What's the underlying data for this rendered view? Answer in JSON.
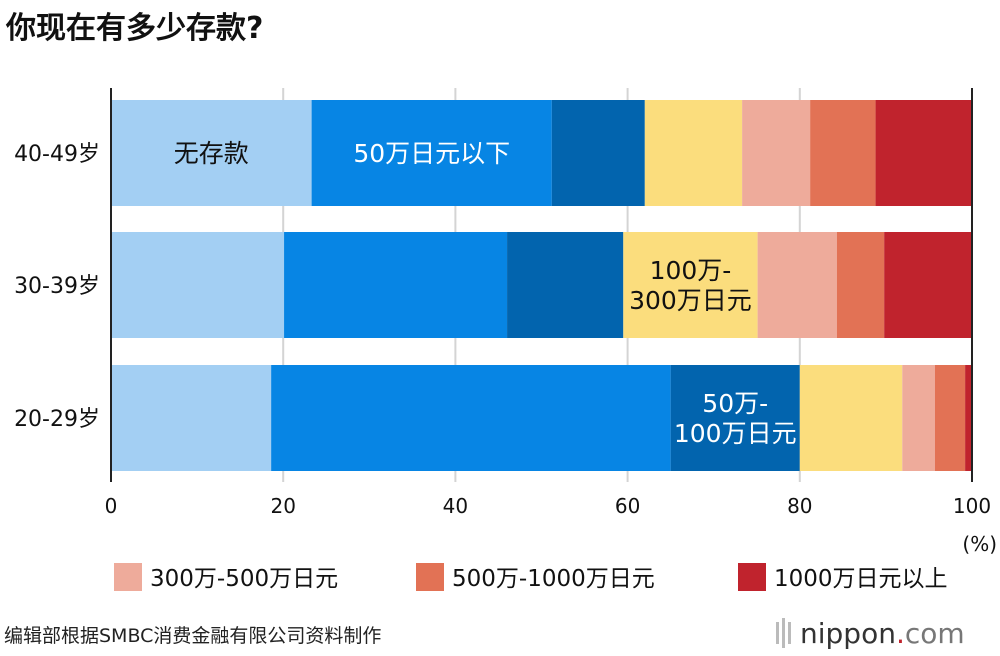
{
  "chart_data": {
    "type": "bar",
    "orientation": "horizontal",
    "stacked": true,
    "title": "你现在有多少存款?",
    "categories": [
      "40-49岁",
      "30-39岁",
      "20-29岁"
    ],
    "series": [
      {
        "name": "无存款",
        "color": "#a3cff3",
        "values": [
          23.3,
          20.1,
          18.6
        ]
      },
      {
        "name": "50万日元以下",
        "color": "#0785e4",
        "values": [
          27.9,
          25.9,
          46.4
        ]
      },
      {
        "name": "50万-100万日元",
        "color": "#0264ae",
        "values": [
          10.8,
          13.5,
          15.0
        ]
      },
      {
        "name": "100万-300万日元",
        "color": "#fbdd7d",
        "values": [
          11.3,
          15.6,
          11.9
        ]
      },
      {
        "name": "300万-500万日元",
        "color": "#eeab9b",
        "values": [
          7.9,
          9.2,
          3.8
        ]
      },
      {
        "name": "500万-1000万日元",
        "color": "#e27255",
        "values": [
          7.6,
          5.5,
          3.5
        ]
      },
      {
        "name": "1000万日元以上",
        "color": "#c0232d",
        "values": [
          11.2,
          10.2,
          0.8
        ]
      }
    ],
    "inline_labels": [
      {
        "series": 0,
        "row": 0,
        "lines": [
          "无存款"
        ],
        "text_color": "#111111"
      },
      {
        "series": 1,
        "row": 0,
        "lines": [
          "50万日元以下"
        ],
        "text_color": "#ffffff"
      },
      {
        "series": 3,
        "row": 1,
        "lines": [
          "100万-",
          "300万日元"
        ],
        "text_color": "#111111"
      },
      {
        "series": 2,
        "row": 2,
        "lines": [
          "50万-",
          "100万日元"
        ],
        "text_color": "#ffffff"
      }
    ],
    "legend_series": [
      4,
      5,
      6
    ],
    "legend_position": "bottom",
    "xlim": [
      0,
      100
    ],
    "xticks": [
      0,
      20,
      40,
      60,
      80,
      100
    ],
    "xlabel": "(%)",
    "grid": true
  },
  "source": "编辑部根据SMBC消费金融有限公司资料制作",
  "logo": "nippon.com"
}
